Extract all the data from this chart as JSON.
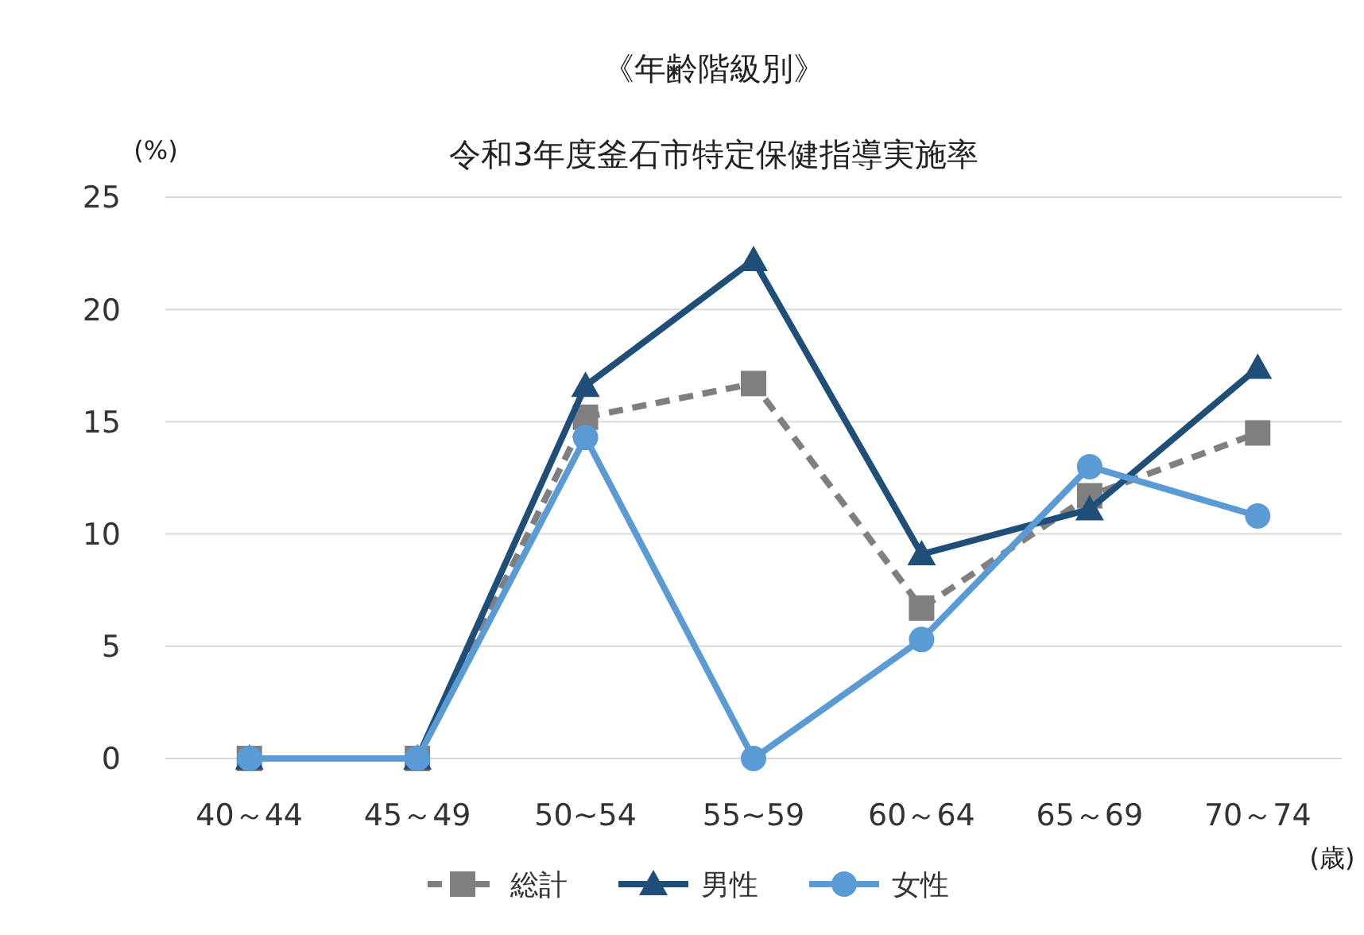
{
  "chart_data": {
    "type": "line",
    "title": "《年齢階級別》",
    "subtitle": "令和3年度釜石市特定保健指導実施率",
    "ylabel": "(%)",
    "xlabel": "(歳)",
    "categories": [
      "40～44",
      "45～49",
      "50~54",
      "55~59",
      "60～64",
      "65～69",
      "70～74"
    ],
    "series": [
      {
        "name": "総計",
        "color": "#7f7f7f",
        "marker": "square",
        "line_style": "dashed",
        "values": [
          0,
          0,
          15.2,
          16.7,
          6.7,
          11.7,
          14.5
        ]
      },
      {
        "name": "男性",
        "color": "#1f4e79",
        "marker": "triangle",
        "line_style": "solid",
        "values": [
          0,
          0,
          16.6,
          22.2,
          9.1,
          11.1,
          17.4
        ]
      },
      {
        "name": "女性",
        "color": "#5b9bd5",
        "marker": "circle",
        "line_style": "solid",
        "values": [
          0,
          0,
          14.3,
          0,
          5.3,
          13.0,
          10.8
        ]
      }
    ],
    "ylim": [
      0,
      25
    ],
    "yticks": [
      0,
      5,
      10,
      15,
      20,
      25
    ],
    "grid": "y",
    "legend": "bottom"
  }
}
